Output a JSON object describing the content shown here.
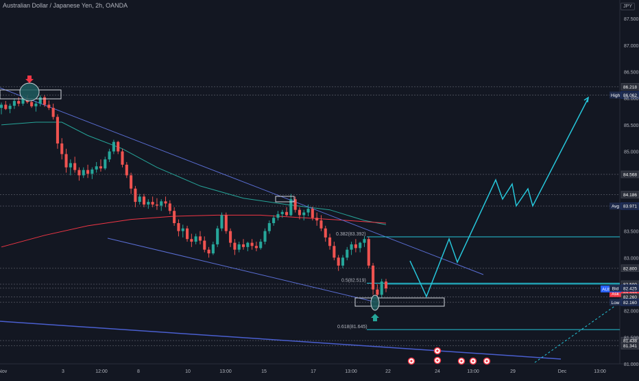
{
  "header": {
    "title": "Australian Dollar / Japanese Yen, 2h, OANDA",
    "currency": "JPY"
  },
  "chart_data": {
    "type": "line",
    "symbol": "AUDJPY",
    "price_axis": {
      "ylim": [
        81.0,
        87.8
      ],
      "ticks": [
        "87.500",
        "87.000",
        "86.500",
        "86.000",
        "85.500",
        "85.000",
        "83.500",
        "83.000",
        "82.000",
        "81.500",
        "81.000"
      ]
    },
    "time_axis": {
      "labels": [
        "Nov",
        "3",
        "12:00",
        "8",
        "10",
        "13:00",
        "15",
        "17",
        "13:00",
        "22",
        "24",
        "13:00",
        "29",
        "Dec",
        "13:00"
      ]
    },
    "price_labels": [
      {
        "text": "86.218",
        "price": 86.218,
        "style": "level"
      },
      {
        "text": "86.062",
        "price": 86.062,
        "tag": "High",
        "style": "tag"
      },
      {
        "text": "84.568",
        "price": 84.568,
        "style": "level"
      },
      {
        "text": "84.186",
        "price": 84.186,
        "style": "level"
      },
      {
        "text": "83.971",
        "price": 83.971,
        "tag": "Avg",
        "style": "tag"
      },
      {
        "text": "82.800",
        "price": 82.8,
        "style": "level"
      },
      {
        "text": "82.322",
        "price": 82.322,
        "tag": "Ask",
        "style": "ask"
      },
      {
        "text": "82.500",
        "price": 82.5,
        "style": "level"
      },
      {
        "text": "AUDJPY",
        "price": 82.41,
        "style": "symbol"
      },
      {
        "text": "82.425",
        "price": 82.425,
        "tag": "Bid",
        "style": "tag"
      },
      {
        "text": "82.260",
        "price": 82.26,
        "style": "level"
      },
      {
        "text": "82.160",
        "price": 82.16,
        "tag": "Low",
        "style": "tag"
      },
      {
        "text": "81.438",
        "price": 81.438,
        "style": "level"
      },
      {
        "text": "81.341",
        "price": 81.341,
        "style": "level"
      }
    ],
    "fib_labels": [
      {
        "text": "0.382(83.392)",
        "price": 83.392
      },
      {
        "text": "0.5(82.519)",
        "price": 82.519
      },
      {
        "text": "0.618(81.645)",
        "price": 81.645
      }
    ],
    "candles": [
      [
        85.82,
        85.92,
        85.7,
        85.88
      ],
      [
        85.88,
        85.95,
        85.78,
        85.8
      ],
      [
        85.8,
        85.9,
        85.72,
        85.86
      ],
      [
        85.86,
        86.0,
        85.8,
        85.95
      ],
      [
        85.95,
        86.02,
        85.85,
        85.9
      ],
      [
        85.9,
        86.05,
        85.86,
        86.0
      ],
      [
        86.0,
        86.06,
        85.9,
        85.93
      ],
      [
        85.93,
        86.0,
        85.82,
        85.85
      ],
      [
        85.85,
        85.95,
        85.75,
        85.9
      ],
      [
        85.9,
        86.06,
        85.85,
        86.02
      ],
      [
        86.02,
        86.06,
        85.84,
        85.88
      ],
      [
        85.88,
        85.96,
        85.78,
        85.82
      ],
      [
        85.82,
        85.9,
        85.6,
        85.65
      ],
      [
        85.65,
        85.7,
        85.05,
        85.15
      ],
      [
        85.15,
        85.25,
        84.85,
        84.95
      ],
      [
        84.95,
        85.05,
        84.6,
        84.7
      ],
      [
        84.7,
        84.85,
        84.55,
        84.78
      ],
      [
        84.78,
        84.9,
        84.6,
        84.65
      ],
      [
        84.65,
        84.7,
        84.45,
        84.55
      ],
      [
        84.55,
        84.7,
        84.5,
        84.65
      ],
      [
        84.65,
        84.75,
        84.5,
        84.58
      ],
      [
        84.58,
        84.7,
        84.48,
        84.66
      ],
      [
        84.66,
        84.8,
        84.6,
        84.72
      ],
      [
        84.72,
        84.85,
        84.62,
        84.68
      ],
      [
        84.68,
        84.9,
        84.65,
        84.85
      ],
      [
        84.85,
        85.05,
        84.8,
        85.0
      ],
      [
        85.0,
        85.22,
        84.95,
        85.18
      ],
      [
        85.18,
        85.2,
        84.95,
        85.0
      ],
      [
        85.0,
        85.05,
        84.7,
        84.75
      ],
      [
        84.75,
        84.8,
        84.5,
        84.55
      ],
      [
        84.55,
        84.6,
        84.2,
        84.3
      ],
      [
        84.3,
        84.35,
        83.95,
        84.05
      ],
      [
        84.05,
        84.2,
        84.0,
        84.15
      ],
      [
        84.15,
        84.2,
        83.95,
        84.0
      ],
      [
        84.0,
        84.1,
        83.92,
        84.05
      ],
      [
        84.05,
        84.15,
        83.95,
        84.0
      ],
      [
        84.0,
        84.12,
        83.9,
        83.98
      ],
      [
        83.98,
        84.1,
        83.88,
        84.06
      ],
      [
        84.06,
        84.15,
        83.95,
        84.02
      ],
      [
        84.02,
        84.08,
        83.82,
        83.88
      ],
      [
        83.88,
        83.95,
        83.6,
        83.65
      ],
      [
        83.65,
        83.72,
        83.4,
        83.5
      ],
      [
        83.5,
        83.62,
        83.38,
        83.55
      ],
      [
        83.55,
        83.6,
        83.3,
        83.35
      ],
      [
        83.35,
        83.45,
        83.2,
        83.3
      ],
      [
        83.3,
        83.45,
        83.25,
        83.4
      ],
      [
        83.4,
        83.5,
        83.25,
        83.32
      ],
      [
        83.32,
        83.4,
        83.1,
        83.15
      ],
      [
        83.15,
        83.2,
        83.0,
        83.08
      ],
      [
        83.08,
        83.3,
        83.05,
        83.25
      ],
      [
        83.25,
        83.6,
        83.2,
        83.55
      ],
      [
        83.55,
        83.85,
        83.5,
        83.8
      ],
      [
        83.8,
        83.85,
        83.45,
        83.5
      ],
      [
        83.5,
        83.55,
        83.2,
        83.28
      ],
      [
        83.28,
        83.35,
        83.05,
        83.15
      ],
      [
        83.15,
        83.3,
        83.1,
        83.25
      ],
      [
        83.25,
        83.35,
        83.15,
        83.2
      ],
      [
        83.2,
        83.3,
        83.12,
        83.28
      ],
      [
        83.28,
        83.35,
        83.15,
        83.22
      ],
      [
        83.22,
        83.3,
        83.12,
        83.18
      ],
      [
        83.18,
        83.35,
        83.15,
        83.3
      ],
      [
        83.3,
        83.55,
        83.25,
        83.5
      ],
      [
        83.5,
        83.7,
        83.45,
        83.65
      ],
      [
        83.65,
        83.8,
        83.6,
        83.75
      ],
      [
        83.75,
        83.88,
        83.7,
        83.82
      ],
      [
        83.82,
        83.9,
        83.75,
        83.86
      ],
      [
        83.86,
        83.95,
        83.78,
        83.8
      ],
      [
        83.8,
        84.2,
        83.78,
        84.1
      ],
      [
        84.1,
        84.15,
        83.85,
        83.9
      ],
      [
        83.9,
        83.95,
        83.72,
        83.8
      ],
      [
        83.8,
        83.9,
        83.7,
        83.85
      ],
      [
        83.85,
        84.0,
        83.78,
        83.92
      ],
      [
        83.92,
        83.96,
        83.7,
        83.75
      ],
      [
        83.75,
        83.85,
        83.6,
        83.7
      ],
      [
        83.7,
        83.8,
        83.5,
        83.55
      ],
      [
        83.55,
        83.6,
        83.3,
        83.38
      ],
      [
        83.38,
        83.45,
        83.15,
        83.22
      ],
      [
        83.22,
        83.3,
        82.95,
        83.0
      ],
      [
        83.0,
        83.05,
        82.75,
        82.85
      ],
      [
        82.85,
        83.05,
        82.8,
        83.0
      ],
      [
        83.0,
        83.2,
        82.95,
        83.15
      ],
      [
        83.15,
        83.3,
        83.05,
        83.25
      ],
      [
        83.25,
        83.35,
        83.1,
        83.18
      ],
      [
        83.18,
        83.3,
        83.1,
        83.28
      ],
      [
        83.28,
        83.4,
        83.2,
        83.35
      ],
      [
        83.35,
        83.39,
        82.8,
        82.85
      ],
      [
        82.85,
        82.9,
        82.3,
        82.4
      ],
      [
        82.4,
        82.5,
        82.16,
        82.3
      ],
      [
        82.3,
        82.6,
        82.25,
        82.55
      ],
      [
        82.55,
        82.6,
        82.35,
        82.42
      ]
    ],
    "emas": [
      {
        "name": "ema-teal",
        "color": "#26a69a",
        "values": [
          [
            0,
            85.5
          ],
          [
            8,
            85.55
          ],
          [
            14,
            85.55
          ],
          [
            20,
            85.3
          ],
          [
            28,
            85.05
          ],
          [
            36,
            84.7
          ],
          [
            46,
            84.35
          ],
          [
            56,
            84.12
          ],
          [
            66,
            84.0
          ],
          [
            76,
            83.9
          ],
          [
            84,
            83.7
          ],
          [
            89,
            83.62
          ]
        ]
      },
      {
        "name": "ema-red",
        "color": "#f23645",
        "values": [
          [
            0,
            83.2
          ],
          [
            10,
            83.42
          ],
          [
            20,
            83.6
          ],
          [
            30,
            83.72
          ],
          [
            40,
            83.78
          ],
          [
            50,
            83.8
          ],
          [
            60,
            83.8
          ],
          [
            70,
            83.75
          ],
          [
            80,
            83.7
          ],
          [
            89,
            83.65
          ]
        ]
      }
    ],
    "grid": false,
    "legend": "none"
  }
}
